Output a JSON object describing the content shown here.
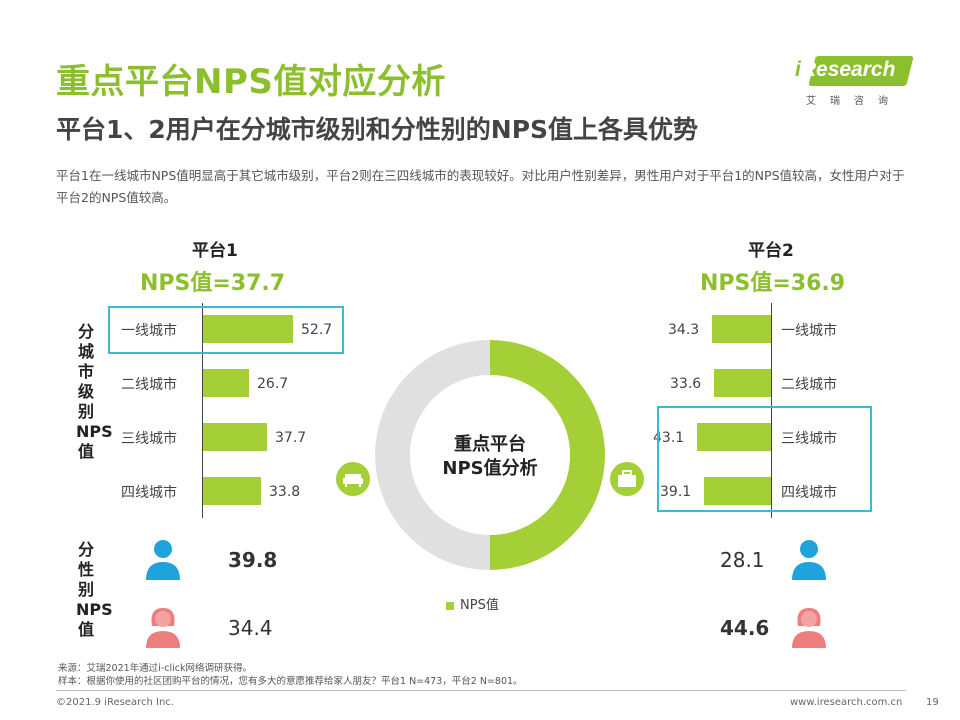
{
  "header": {
    "title": "重点平台NPS值对应分析",
    "subtitle": "平台1、2用户在分城市级别和分性别的NPS值上各具优势",
    "description": "平台1在一线城市NPS值明显高于其它城市级别，平台2则在三四线城市的表现较好。对比用户性别差异，男性用户对于平台1的NPS值较高，女性用户对于平台2的NPS值较高。"
  },
  "logo": {
    "i": "i",
    "rest": "Research",
    "cn": "艾瑞咨询"
  },
  "labels": {
    "city_axis": "分城市级别NPS值",
    "gender_axis": "分性别NPS值"
  },
  "platform1": {
    "name": "平台1",
    "nps": "NPS值=37.7"
  },
  "platform2": {
    "name": "平台2",
    "nps": "NPS值=36.9"
  },
  "donut": {
    "center_line1": "重点平台",
    "center_line2": "NPS值分析",
    "legend": "NPS值"
  },
  "chart_data": [
    {
      "type": "bar",
      "title": "平台1 分城市级别NPS值",
      "categories": [
        "一线城市",
        "二线城市",
        "三线城市",
        "四线城市"
      ],
      "values": [
        52.7,
        26.7,
        37.7,
        33.8
      ],
      "value_labels": [
        "52.7",
        "26.7",
        "37.7",
        "33.8"
      ],
      "highlight": "一线城市",
      "orientation": "horizontal",
      "xlim": [
        0,
        60
      ]
    },
    {
      "type": "bar",
      "title": "平台2 分城市级别NPS值",
      "categories": [
        "一线城市",
        "二线城市",
        "三线城市",
        "四线城市"
      ],
      "values": [
        34.3,
        33.6,
        43.1,
        39.1
      ],
      "value_labels": [
        "34.3",
        "33.6",
        "43.1",
        "39.1"
      ],
      "highlight": [
        "三线城市",
        "四线城市"
      ],
      "orientation": "horizontal",
      "xlim": [
        0,
        60
      ]
    },
    {
      "type": "table",
      "title": "分性别NPS值",
      "rows": [
        {
          "gender": "男",
          "platform1": "39.8",
          "platform2": "28.1",
          "winner": "platform1"
        },
        {
          "gender": "女",
          "platform1": "34.4",
          "platform2": "44.6",
          "winner": "platform2"
        }
      ]
    },
    {
      "type": "pie",
      "title": "重点平台NPS值分析",
      "categories": [
        "平台1",
        "平台2"
      ],
      "values": [
        50,
        50
      ],
      "colors": [
        "#a4cf36",
        "#e0e0e0"
      ],
      "legend": [
        "NPS值"
      ]
    }
  ],
  "colors": {
    "accent": "#8cbf2e",
    "bar": "#a4cf36",
    "highlight": "#3fb8d2",
    "male": "#1fa3dd",
    "female": "#ee7e7e",
    "donut_grey": "#e0e0e0"
  },
  "footer": {
    "source": "来源：艾瑞2021年通过i-click网络调研获得。",
    "sample": "样本：根据你使用的社区团购平台的情况，您有多大的意愿推荐给家人朋友？平台1 N=473，平台2 N=801。",
    "copyright": "©2021.9 iResearch Inc.",
    "url": "www.iresearch.com.cn",
    "page": "19"
  }
}
